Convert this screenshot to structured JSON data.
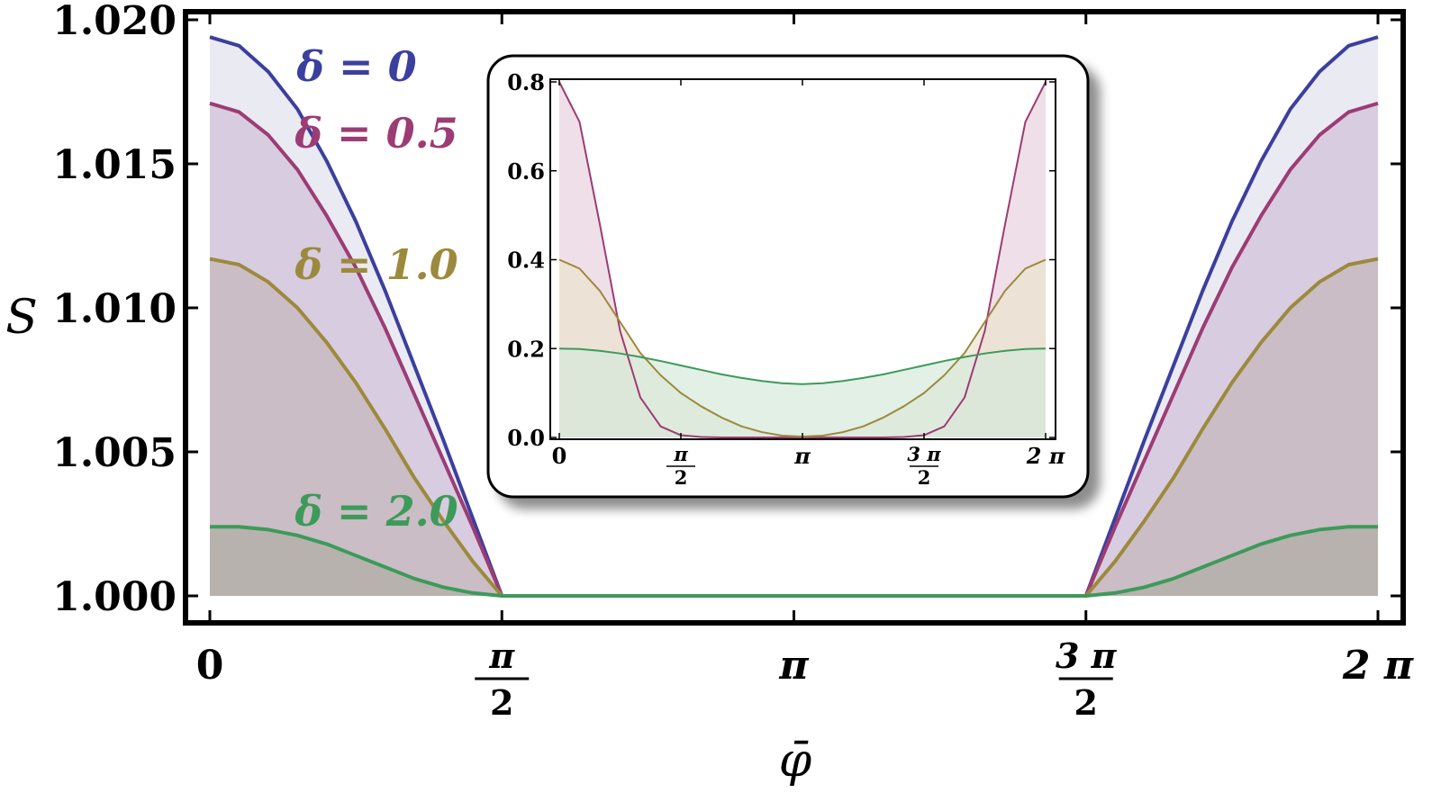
{
  "chart_data": [
    {
      "type": "area",
      "xlabel": "φ̄",
      "ylabel": "S",
      "xlim": [
        0,
        6.2832
      ],
      "ylim": [
        0.9983,
        1.0205
      ],
      "x_ticks": [
        {
          "value": 0,
          "label": "0"
        },
        {
          "value": 1.5708,
          "num": "π",
          "den": "2"
        },
        {
          "value": 3.1416,
          "label": "π"
        },
        {
          "value": 4.7124,
          "num": "3 π",
          "den": "2"
        },
        {
          "value": 6.2832,
          "label": "2 π"
        }
      ],
      "y_ticks": [
        "1.000",
        "1.005",
        "1.010",
        "1.015",
        "1.020"
      ],
      "x": [
        0,
        0.1571,
        0.3142,
        0.4712,
        0.6283,
        0.7854,
        0.9425,
        1.0996,
        1.2566,
        1.4137,
        1.5708,
        1.7279,
        3.1416,
        4.5553,
        4.7124,
        4.8695,
        5.0265,
        5.1836,
        5.3407,
        5.4978,
        5.6549,
        5.8119,
        5.969,
        6.1261,
        6.2832
      ],
      "series": [
        {
          "name": "δ = 0",
          "color": "#3b3f9e",
          "fill": "#d9d8ea",
          "values": [
            1.0194,
            1.0191,
            1.0182,
            1.0169,
            1.0151,
            1.013,
            1.0106,
            1.008,
            1.0054,
            1.0027,
            1.0,
            1.0,
            1.0,
            1.0,
            1.0,
            1.0027,
            1.0054,
            1.008,
            1.0106,
            1.013,
            1.0151,
            1.0169,
            1.0182,
            1.0191,
            1.0194
          ]
        },
        {
          "name": "δ = 0.5",
          "color": "#9c3c74",
          "fill": "#c8b2d1",
          "values": [
            1.0171,
            1.0168,
            1.016,
            1.0148,
            1.0132,
            1.0114,
            1.0093,
            1.007,
            1.0047,
            1.0024,
            1.0,
            1.0,
            1.0,
            1.0,
            1.0,
            1.0024,
            1.0047,
            1.007,
            1.0093,
            1.0114,
            1.0132,
            1.0148,
            1.016,
            1.0168,
            1.0171
          ]
        },
        {
          "name": "δ = 1.0",
          "color": "#9c8a3c",
          "fill": "#c0b1af",
          "values": [
            1.0117,
            1.0115,
            1.0109,
            1.01,
            1.0088,
            1.0074,
            1.0058,
            1.0041,
            1.0026,
            1.0012,
            1.0,
            1.0,
            1.0,
            1.0,
            1.0,
            1.0012,
            1.0026,
            1.0041,
            1.0058,
            1.0074,
            1.0088,
            1.01,
            1.0109,
            1.0115,
            1.0117
          ]
        },
        {
          "name": "δ = 2.0",
          "color": "#3d9a5a",
          "fill": "#a9aa9d",
          "values": [
            1.0024,
            1.0024,
            1.0023,
            1.0021,
            1.0018,
            1.0014,
            1.001,
            1.0006,
            1.0003,
            1.0001,
            1.0,
            1.0,
            1.0,
            1.0,
            1.0,
            1.0001,
            1.0003,
            1.0006,
            1.001,
            1.0014,
            1.0018,
            1.0021,
            1.0023,
            1.0024,
            1.0024
          ]
        }
      ],
      "annotations": [
        "δ = 0",
        "δ = 0.5",
        "δ = 1.0",
        "δ = 2.0"
      ],
      "grid": false
    },
    {
      "type": "area",
      "inset": true,
      "xlim": [
        0,
        6.2832
      ],
      "ylim": [
        0,
        0.8
      ],
      "x_ticks": [
        {
          "value": 0,
          "label": "0"
        },
        {
          "value": 1.5708,
          "num": "π",
          "den": "2"
        },
        {
          "value": 3.1416,
          "label": "π"
        },
        {
          "value": 4.7124,
          "num": "3 π",
          "den": "2"
        },
        {
          "value": 6.2832,
          "label": "2 π"
        }
      ],
      "y_ticks": [
        "0.0",
        "0.2",
        "0.4",
        "0.6",
        "0.8"
      ],
      "x": [
        0,
        0.2618,
        0.5236,
        0.7854,
        1.0472,
        1.309,
        1.5708,
        1.8326,
        2.0944,
        2.3562,
        2.618,
        2.8798,
        3.1416,
        3.4034,
        3.6652,
        3.927,
        4.1888,
        4.4506,
        4.7124,
        4.9742,
        5.236,
        5.4978,
        5.7596,
        6.0214,
        6.2832
      ],
      "series": [
        {
          "color": "#9c3c74",
          "fill": "#e8d2de",
          "values": [
            0.8,
            0.71,
            0.48,
            0.24,
            0.09,
            0.025,
            0.005,
            0.001,
            0,
            0,
            0,
            0,
            0,
            0,
            0,
            0,
            0,
            0.001,
            0.005,
            0.025,
            0.09,
            0.24,
            0.48,
            0.71,
            0.8
          ]
        },
        {
          "color": "#9c8a3c",
          "fill": "#ebe2cf",
          "values": [
            0.4,
            0.38,
            0.33,
            0.26,
            0.19,
            0.14,
            0.1,
            0.07,
            0.045,
            0.025,
            0.012,
            0.004,
            0.002,
            0.004,
            0.012,
            0.025,
            0.045,
            0.07,
            0.1,
            0.14,
            0.19,
            0.26,
            0.33,
            0.38,
            0.4
          ]
        },
        {
          "color": "#3d9a5a",
          "fill": "#d6eadc",
          "values": [
            0.2,
            0.199,
            0.195,
            0.189,
            0.181,
            0.172,
            0.162,
            0.152,
            0.142,
            0.134,
            0.127,
            0.122,
            0.12,
            0.122,
            0.127,
            0.134,
            0.142,
            0.152,
            0.162,
            0.172,
            0.181,
            0.189,
            0.195,
            0.199,
            0.2
          ]
        }
      ]
    }
  ]
}
